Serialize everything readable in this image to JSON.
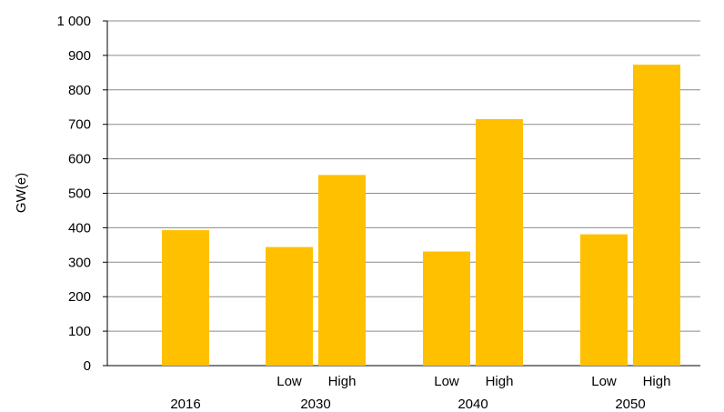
{
  "chart_data": {
    "type": "bar",
    "ylabel": "GW(e)",
    "ylim": [
      0,
      1000
    ],
    "yticks": [
      "0",
      "100",
      "200",
      "300",
      "400",
      "500",
      "600",
      "700",
      "800",
      "900",
      "1 000"
    ],
    "grid": true,
    "bar_color": "#FFC000",
    "grid_color": "#8c8c8c",
    "groups": [
      {
        "category": "2016",
        "bars": [
          {
            "label": "",
            "value": 393
          }
        ]
      },
      {
        "category": "2030",
        "bars": [
          {
            "label": "Low",
            "value": 344
          },
          {
            "label": "High",
            "value": 553
          }
        ]
      },
      {
        "category": "2040",
        "bars": [
          {
            "label": "Low",
            "value": 331
          },
          {
            "label": "High",
            "value": 715
          }
        ]
      },
      {
        "category": "2050",
        "bars": [
          {
            "label": "Low",
            "value": 381
          },
          {
            "label": "High",
            "value": 873
          }
        ]
      }
    ]
  }
}
